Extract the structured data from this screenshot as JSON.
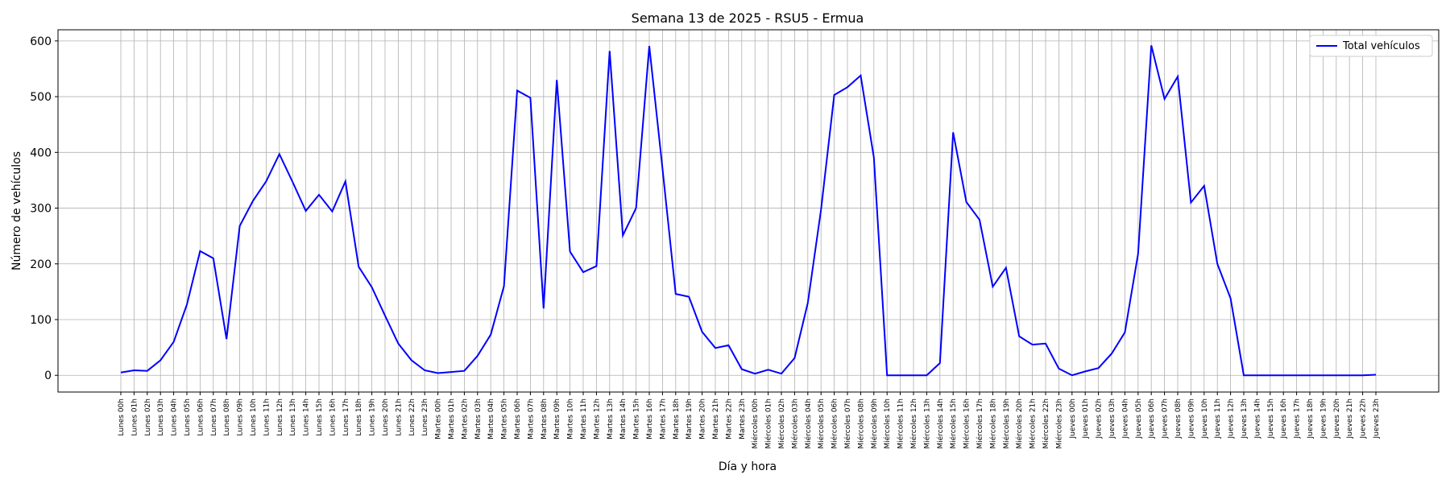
{
  "chart_data": {
    "type": "line",
    "title": "Semana 13 de 2025 - RSU5 - Ermua",
    "xlabel": "Día y hora",
    "ylabel": "Número de vehículos",
    "ylim": [
      -30,
      620
    ],
    "yticks": [
      0,
      100,
      200,
      300,
      400,
      500,
      600
    ],
    "grid": true,
    "legend_position": "top-right",
    "line_color": "#0000ff",
    "categories": [
      "Lunes 00h",
      "Lunes 01h",
      "Lunes 02h",
      "Lunes 03h",
      "Lunes 04h",
      "Lunes 05h",
      "Lunes 06h",
      "Lunes 07h",
      "Lunes 08h",
      "Lunes 09h",
      "Lunes 10h",
      "Lunes 11h",
      "Lunes 12h",
      "Lunes 13h",
      "Lunes 14h",
      "Lunes 15h",
      "Lunes 16h",
      "Lunes 17h",
      "Lunes 18h",
      "Lunes 19h",
      "Lunes 20h",
      "Lunes 21h",
      "Lunes 22h",
      "Lunes 23h",
      "Martes 00h",
      "Martes 01h",
      "Martes 02h",
      "Martes 03h",
      "Martes 04h",
      "Martes 05h",
      "Martes 06h",
      "Martes 07h",
      "Martes 08h",
      "Martes 09h",
      "Martes 10h",
      "Martes 11h",
      "Martes 12h",
      "Martes 13h",
      "Martes 14h",
      "Martes 15h",
      "Martes 16h",
      "Martes 17h",
      "Martes 18h",
      "Martes 19h",
      "Martes 20h",
      "Martes 21h",
      "Martes 22h",
      "Martes 23h",
      "Miércoles 00h",
      "Miércoles 01h",
      "Miércoles 02h",
      "Miércoles 03h",
      "Miércoles 04h",
      "Miércoles 05h",
      "Miércoles 06h",
      "Miércoles 07h",
      "Miércoles 08h",
      "Miércoles 09h",
      "Miércoles 10h",
      "Miércoles 11h",
      "Miércoles 12h",
      "Miércoles 13h",
      "Miércoles 14h",
      "Miércoles 15h",
      "Miércoles 16h",
      "Miércoles 17h",
      "Miércoles 18h",
      "Miércoles 19h",
      "Miércoles 20h",
      "Miércoles 21h",
      "Miércoles 22h",
      "Miércoles 23h",
      "Jueves 00h",
      "Jueves 01h",
      "Jueves 02h",
      "Jueves 03h",
      "Jueves 04h",
      "Jueves 05h",
      "Jueves 06h",
      "Jueves 07h",
      "Jueves 08h",
      "Jueves 09h",
      "Jueves 10h",
      "Jueves 11h",
      "Jueves 12h",
      "Jueves 13h",
      "Jueves 14h",
      "Jueves 15h",
      "Jueves 16h",
      "Jueves 17h",
      "Jueves 18h",
      "Jueves 19h",
      "Jueves 20h",
      "Jueves 21h",
      "Jueves 22h",
      "Jueves 23h"
    ],
    "series": [
      {
        "name": "Total vehículos",
        "values": [
          5,
          9,
          8,
          27,
          60,
          127,
          223,
          210,
          65,
          268,
          313,
          348,
          397,
          347,
          295,
          324,
          294,
          348,
          195,
          158,
          107,
          57,
          27,
          9,
          4,
          6,
          8,
          35,
          73,
          160,
          511,
          498,
          120,
          530,
          222,
          185,
          196,
          582,
          251,
          300,
          591,
          371,
          146,
          141,
          78,
          49,
          54,
          11,
          3,
          10,
          3,
          31,
          130,
          297,
          503,
          517,
          538,
          391,
          0,
          0,
          0,
          0,
          22,
          436,
          311,
          279,
          159,
          193,
          70,
          55,
          57,
          12,
          0,
          7,
          13,
          39,
          77,
          218,
          592,
          496,
          536,
          310,
          340,
          200,
          138,
          0,
          0,
          0,
          0,
          0,
          0,
          0,
          0,
          0,
          0,
          1
        ]
      }
    ]
  }
}
